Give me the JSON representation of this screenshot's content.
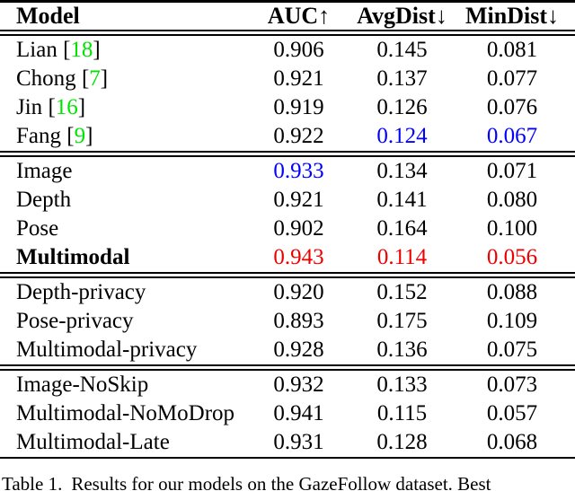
{
  "colors": {
    "black": "#000000",
    "blue": "#0000ff",
    "red": "#ee0000",
    "green": "#00e400"
  },
  "table": {
    "columns": [
      {
        "label": "Model",
        "arrow": ""
      },
      {
        "label": "AUC",
        "arrow": "↑"
      },
      {
        "label": "AvgDist",
        "arrow": "↓"
      },
      {
        "label": "MinDist",
        "arrow": "↓"
      }
    ],
    "sections": [
      [
        {
          "label": "Lian",
          "cite": "18",
          "bold": false,
          "values": [
            "0.906",
            "0.145",
            "0.081"
          ],
          "value_colors": [
            "black",
            "black",
            "black"
          ]
        },
        {
          "label": "Chong",
          "cite": "7",
          "bold": false,
          "values": [
            "0.921",
            "0.137",
            "0.077"
          ],
          "value_colors": [
            "black",
            "black",
            "black"
          ]
        },
        {
          "label": "Jin",
          "cite": "16",
          "bold": false,
          "values": [
            "0.919",
            "0.126",
            "0.076"
          ],
          "value_colors": [
            "black",
            "black",
            "black"
          ]
        },
        {
          "label": "Fang",
          "cite": "9",
          "bold": false,
          "values": [
            "0.922",
            "0.124",
            "0.067"
          ],
          "value_colors": [
            "black",
            "blue",
            "blue"
          ]
        }
      ],
      [
        {
          "label": "Image",
          "cite": null,
          "bold": false,
          "values": [
            "0.933",
            "0.134",
            "0.071"
          ],
          "value_colors": [
            "blue",
            "black",
            "black"
          ]
        },
        {
          "label": "Depth",
          "cite": null,
          "bold": false,
          "values": [
            "0.921",
            "0.141",
            "0.080"
          ],
          "value_colors": [
            "black",
            "black",
            "black"
          ]
        },
        {
          "label": "Pose",
          "cite": null,
          "bold": false,
          "values": [
            "0.902",
            "0.164",
            "0.100"
          ],
          "value_colors": [
            "black",
            "black",
            "black"
          ]
        },
        {
          "label": "Multimodal",
          "cite": null,
          "bold": true,
          "values": [
            "0.943",
            "0.114",
            "0.056"
          ],
          "value_colors": [
            "red",
            "red",
            "red"
          ]
        }
      ],
      [
        {
          "label": "Depth-privacy",
          "cite": null,
          "bold": false,
          "values": [
            "0.920",
            "0.152",
            "0.088"
          ],
          "value_colors": [
            "black",
            "black",
            "black"
          ]
        },
        {
          "label": "Pose-privacy",
          "cite": null,
          "bold": false,
          "values": [
            "0.893",
            "0.175",
            "0.109"
          ],
          "value_colors": [
            "black",
            "black",
            "black"
          ]
        },
        {
          "label": "Multimodal-privacy",
          "cite": null,
          "bold": false,
          "values": [
            "0.928",
            "0.136",
            "0.075"
          ],
          "value_colors": [
            "black",
            "black",
            "black"
          ]
        }
      ],
      [
        {
          "label": "Image-NoSkip",
          "cite": null,
          "bold": false,
          "values": [
            "0.932",
            "0.133",
            "0.073"
          ],
          "value_colors": [
            "black",
            "black",
            "black"
          ]
        },
        {
          "label": "Multimodal-NoMoDrop",
          "cite": null,
          "bold": false,
          "values": [
            "0.941",
            "0.115",
            "0.057"
          ],
          "value_colors": [
            "black",
            "black",
            "black"
          ]
        },
        {
          "label": "Multimodal-Late",
          "cite": null,
          "bold": false,
          "values": [
            "0.931",
            "0.128",
            "0.068"
          ],
          "value_colors": [
            "black",
            "black",
            "black"
          ]
        }
      ]
    ]
  },
  "caption": {
    "label": "Table 1.",
    "text": "Results for our models on the GazeFollow dataset.  Best"
  }
}
